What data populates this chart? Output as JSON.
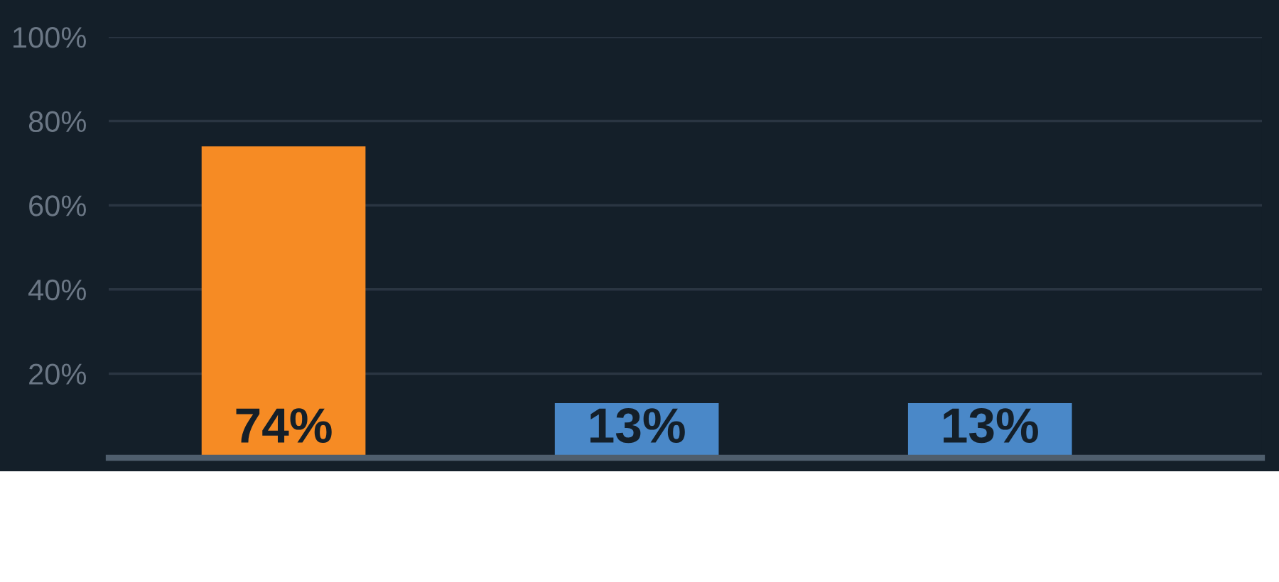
{
  "chart_data": {
    "type": "bar",
    "categories": [
      null,
      null,
      null
    ],
    "values": [
      74,
      13,
      13
    ],
    "colors": [
      "#f68b24",
      "#4a88c8",
      "#4a88c8"
    ],
    "ylim": [
      0,
      100
    ],
    "yticks": [
      {
        "value": 20,
        "label": "20%"
      },
      {
        "value": 40,
        "label": "40%"
      },
      {
        "value": 60,
        "label": "60%"
      },
      {
        "value": 80,
        "label": "80%"
      },
      {
        "value": 100,
        "label": "100%"
      }
    ],
    "value_labels": [
      "74%",
      "13%",
      "13%"
    ],
    "grid": "y"
  }
}
